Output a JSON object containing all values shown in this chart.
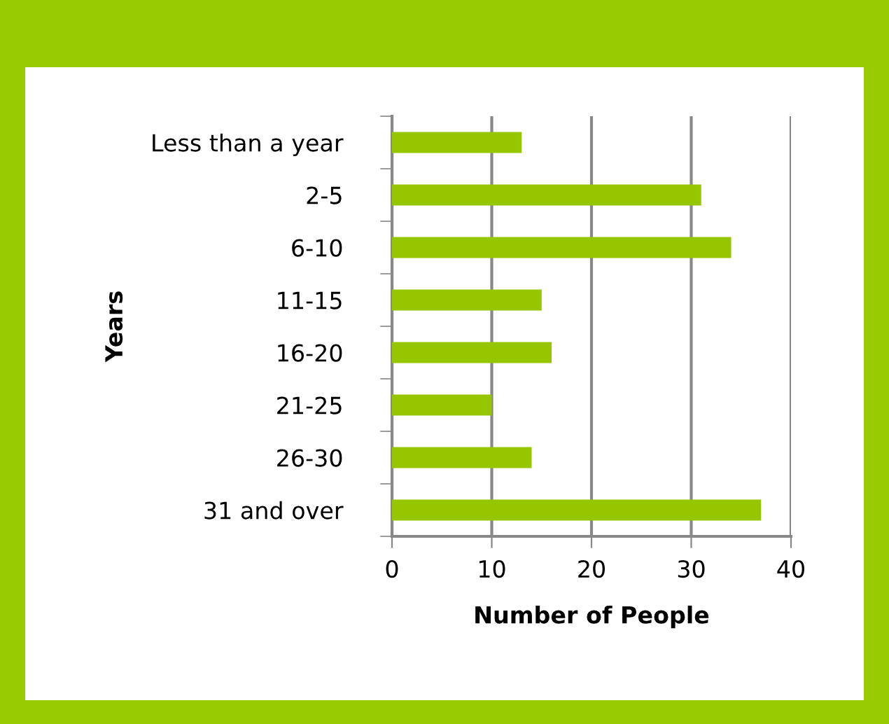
{
  "chart_data": {
    "type": "bar",
    "orientation": "horizontal",
    "xlabel": "Number of People",
    "ylabel": "Years",
    "categories": [
      "Less than a year",
      "2-5",
      "6-10",
      "11-15",
      "16-20",
      "21-25",
      "26-30",
      "31 and over"
    ],
    "values": [
      13,
      31,
      34,
      15,
      16,
      10,
      14,
      37
    ],
    "color": "#95c600",
    "xlim": [
      0,
      40
    ],
    "xticks": [
      0,
      10,
      20,
      30,
      40
    ],
    "grid": "x",
    "legend": false
  }
}
